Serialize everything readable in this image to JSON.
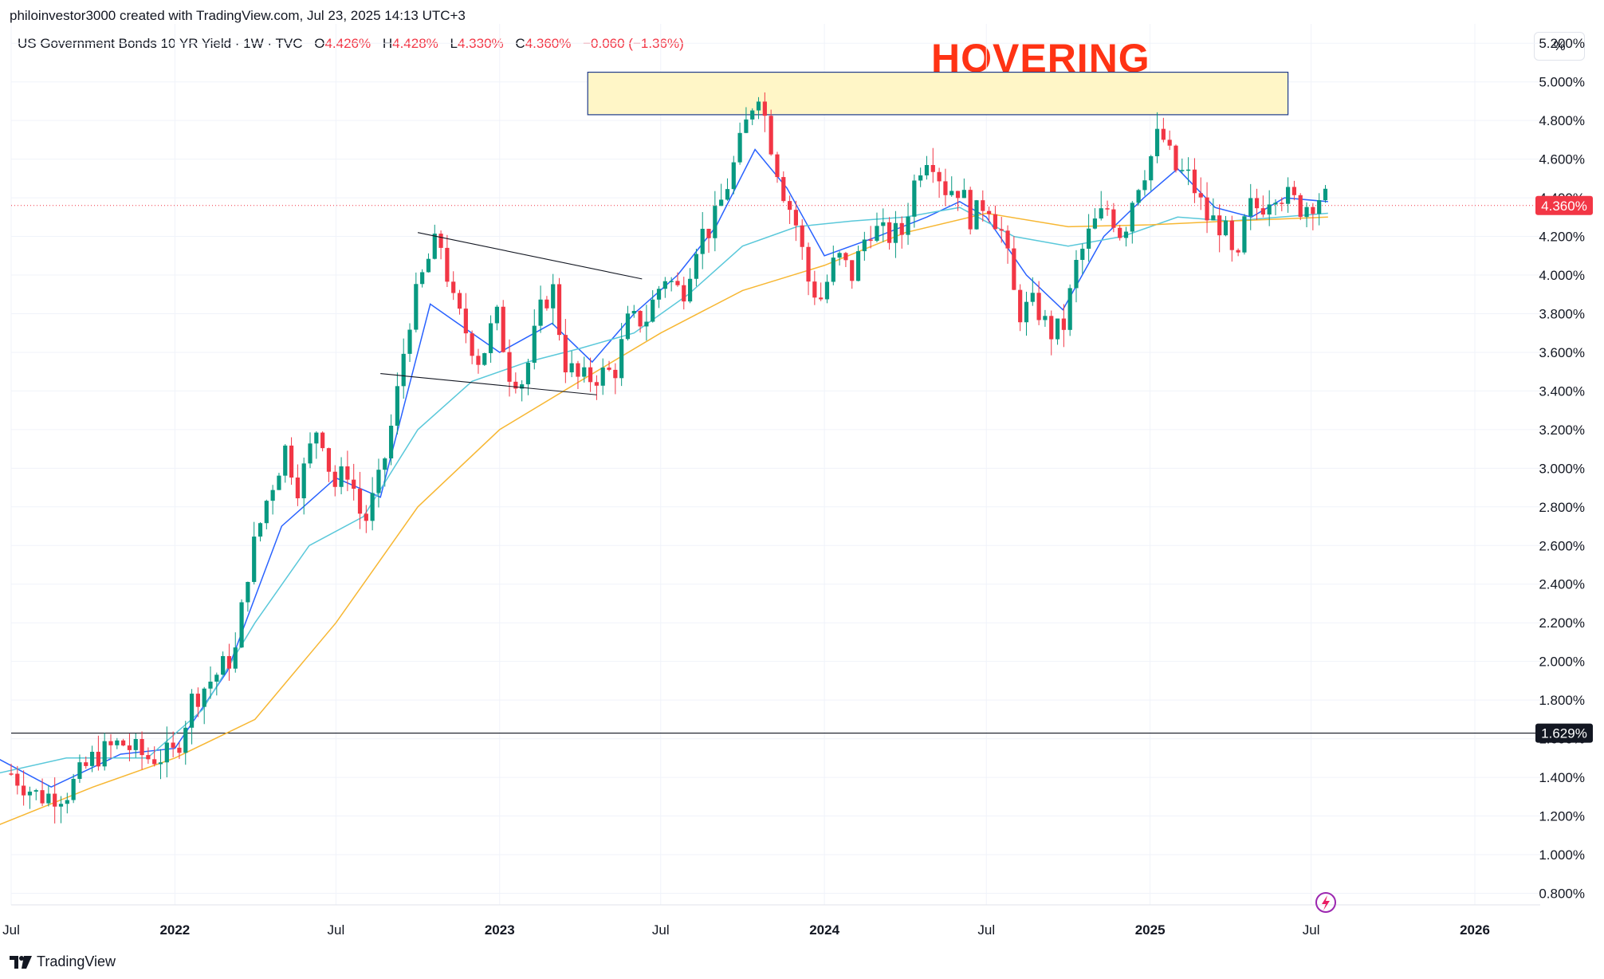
{
  "header": {
    "attribution": "philoinvestor3000 created with TradingView.com, Jul 23, 2025 14:13 UTC+3"
  },
  "legend": {
    "symbol": "US Government Bonds 10 YR Yield · 1W · TVC",
    "open_label": "O",
    "open": "4.426%",
    "high_label": "H",
    "high": "4.428%",
    "low_label": "L",
    "low": "4.330%",
    "close_label": "C",
    "close": "4.360%",
    "change": "−0.060 (−1.36%)"
  },
  "annotation": {
    "text": "HOVERING"
  },
  "price_axis": {
    "unit": "%"
  },
  "footer": {
    "brand": "TradingView"
  },
  "colors": {
    "up": "#089981",
    "down": "#f23645",
    "ma_fast": "#2962ff",
    "ma_mid": "#5ac8da",
    "ma_slow": "#f7b733",
    "zone_fill": "#fff6c7",
    "zone_border": "#1e3a8a"
  },
  "chart_data": {
    "type": "candlestick",
    "title": "US Government Bonds 10 YR Yield · 1W · TVC",
    "y_unit": "%",
    "ylim": [
      0.74,
      5.3
    ],
    "y_ticks": [
      "5.200%",
      "5.000%",
      "4.800%",
      "4.600%",
      "4.400%",
      "4.200%",
      "4.000%",
      "3.800%",
      "3.600%",
      "3.400%",
      "3.200%",
      "3.000%",
      "2.800%",
      "2.600%",
      "2.400%",
      "2.200%",
      "2.000%",
      "1.800%",
      "1.600%",
      "1.400%",
      "1.200%",
      "1.000%",
      "0.800%"
    ],
    "y_tick_values": [
      5.2,
      5.0,
      4.8,
      4.6,
      4.4,
      4.2,
      4.0,
      3.8,
      3.6,
      3.4,
      3.2,
      3.0,
      2.8,
      2.6,
      2.4,
      2.2,
      2.0,
      1.8,
      1.6,
      1.4,
      1.2,
      1.0,
      0.8
    ],
    "x_ticks": [
      {
        "label": "Jul",
        "date": "2021-07-01",
        "bold": false
      },
      {
        "label": "2022",
        "date": "2022-01-01",
        "bold": true
      },
      {
        "label": "Jul",
        "date": "2022-07-01",
        "bold": false
      },
      {
        "label": "2023",
        "date": "2023-01-01",
        "bold": true
      },
      {
        "label": "Jul",
        "date": "2023-07-01",
        "bold": false
      },
      {
        "label": "2024",
        "date": "2024-01-01",
        "bold": true
      },
      {
        "label": "Jul",
        "date": "2024-07-01",
        "bold": false
      },
      {
        "label": "2025",
        "date": "2025-01-01",
        "bold": true
      },
      {
        "label": "Jul",
        "date": "2025-07-01",
        "bold": false
      },
      {
        "label": "2026",
        "date": "2026-01-01",
        "bold": true
      }
    ],
    "last_price_label": "4.360%",
    "last_price": 4.36,
    "horizontal_line": {
      "value": 1.629,
      "label": "1.629%"
    },
    "resistance_zone": {
      "from_date": "2023-04-10",
      "to_date": "2025-06-05",
      "low": 4.83,
      "high": 5.05
    },
    "trendlines": [
      {
        "from": [
          "2022-10-01",
          4.22
        ],
        "to": [
          "2023-06-10",
          3.98
        ]
      },
      {
        "from": [
          "2022-08-20",
          3.49
        ],
        "to": [
          "2023-04-20",
          3.38
        ]
      }
    ],
    "close_path": [
      [
        "2021-07-01",
        1.42
      ],
      [
        "2021-08-01",
        1.3
      ],
      [
        "2021-09-01",
        1.32
      ],
      [
        "2021-10-01",
        1.5
      ],
      [
        "2021-11-01",
        1.58
      ],
      [
        "2021-12-01",
        1.5
      ],
      [
        "2022-01-01",
        1.52
      ],
      [
        "2022-01-20",
        1.8
      ],
      [
        "2022-02-20",
        1.95
      ],
      [
        "2022-03-10",
        2.05
      ],
      [
        "2022-03-25",
        2.5
      ],
      [
        "2022-04-15",
        2.85
      ],
      [
        "2022-05-05",
        3.1
      ],
      [
        "2022-05-20",
        2.9
      ],
      [
        "2022-06-12",
        3.25
      ],
      [
        "2022-06-28",
        2.9
      ],
      [
        "2022-07-15",
        3.0
      ],
      [
        "2022-08-01",
        2.7
      ],
      [
        "2022-08-20",
        2.95
      ],
      [
        "2022-09-05",
        3.3
      ],
      [
        "2022-09-20",
        3.75
      ],
      [
        "2022-10-10",
        4.05
      ],
      [
        "2022-10-25",
        4.2
      ],
      [
        "2022-11-10",
        3.85
      ],
      [
        "2022-11-25",
        3.7
      ],
      [
        "2022-12-10",
        3.55
      ],
      [
        "2022-12-28",
        3.8
      ],
      [
        "2023-01-12",
        3.5
      ],
      [
        "2023-01-28",
        3.45
      ],
      [
        "2023-02-15",
        3.8
      ],
      [
        "2023-03-01",
        3.95
      ],
      [
        "2023-03-15",
        3.55
      ],
      [
        "2023-04-01",
        3.45
      ],
      [
        "2023-04-20",
        3.48
      ],
      [
        "2023-05-10",
        3.5
      ],
      [
        "2023-05-25",
        3.75
      ],
      [
        "2023-06-15",
        3.78
      ],
      [
        "2023-07-05",
        4.0
      ],
      [
        "2023-07-25",
        3.9
      ],
      [
        "2023-08-12",
        4.2
      ],
      [
        "2023-08-28",
        4.25
      ],
      [
        "2023-09-20",
        4.55
      ],
      [
        "2023-10-05",
        4.78
      ],
      [
        "2023-10-18",
        4.98
      ],
      [
        "2023-11-01",
        4.7
      ],
      [
        "2023-11-15",
        4.45
      ],
      [
        "2023-12-01",
        4.25
      ],
      [
        "2023-12-15",
        3.95
      ],
      [
        "2023-12-28",
        3.88
      ],
      [
        "2024-01-15",
        4.1
      ],
      [
        "2024-02-01",
        4.0
      ],
      [
        "2024-02-20",
        4.25
      ],
      [
        "2024-03-10",
        4.2
      ],
      [
        "2024-03-28",
        4.22
      ],
      [
        "2024-04-15",
        4.55
      ],
      [
        "2024-04-28",
        4.65
      ],
      [
        "2024-05-15",
        4.45
      ],
      [
        "2024-06-01",
        4.45
      ],
      [
        "2024-06-15",
        4.28
      ],
      [
        "2024-07-01",
        4.4
      ],
      [
        "2024-07-20",
        4.2
      ],
      [
        "2024-08-05",
        3.8
      ],
      [
        "2024-08-25",
        3.85
      ],
      [
        "2024-09-10",
        3.7
      ],
      [
        "2024-09-25",
        3.72
      ],
      [
        "2024-10-10",
        4.05
      ],
      [
        "2024-10-28",
        4.25
      ],
      [
        "2024-11-15",
        4.35
      ],
      [
        "2024-12-01",
        4.2
      ],
      [
        "2024-12-15",
        4.45
      ],
      [
        "2025-01-01",
        4.6
      ],
      [
        "2025-01-12",
        4.75
      ],
      [
        "2025-01-28",
        4.55
      ],
      [
        "2025-02-15",
        4.5
      ],
      [
        "2025-03-05",
        4.3
      ],
      [
        "2025-03-25",
        4.25
      ],
      [
        "2025-04-08",
        4.0
      ],
      [
        "2025-04-20",
        4.35
      ],
      [
        "2025-05-05",
        4.35
      ],
      [
        "2025-05-20",
        4.45
      ],
      [
        "2025-06-05",
        4.4
      ],
      [
        "2025-06-20",
        4.35
      ],
      [
        "2025-07-01",
        4.38
      ],
      [
        "2025-07-14",
        4.42
      ],
      [
        "2025-07-21",
        4.36
      ]
    ],
    "moving_averages": [
      {
        "color": "#2962ff",
        "points": [
          [
            "2021-06-15",
            1.5
          ],
          [
            "2021-08-15",
            1.35
          ],
          [
            "2021-11-01",
            1.52
          ],
          [
            "2022-01-01",
            1.55
          ],
          [
            "2022-03-01",
            1.95
          ],
          [
            "2022-05-01",
            2.7
          ],
          [
            "2022-07-01",
            2.95
          ],
          [
            "2022-08-20",
            2.85
          ],
          [
            "2022-10-15",
            3.85
          ],
          [
            "2022-11-15",
            3.75
          ],
          [
            "2023-01-01",
            3.6
          ],
          [
            "2023-03-01",
            3.75
          ],
          [
            "2023-04-15",
            3.55
          ],
          [
            "2023-06-01",
            3.8
          ],
          [
            "2023-07-20",
            4.0
          ],
          [
            "2023-09-01",
            4.25
          ],
          [
            "2023-10-15",
            4.65
          ],
          [
            "2023-11-20",
            4.45
          ],
          [
            "2024-01-01",
            4.1
          ],
          [
            "2024-03-01",
            4.2
          ],
          [
            "2024-04-25",
            4.3
          ],
          [
            "2024-06-01",
            4.38
          ],
          [
            "2024-07-01",
            4.3
          ],
          [
            "2024-08-15",
            4.0
          ],
          [
            "2024-09-25",
            3.82
          ],
          [
            "2024-11-10",
            4.2
          ],
          [
            "2024-12-25",
            4.4
          ],
          [
            "2025-02-01",
            4.55
          ],
          [
            "2025-03-15",
            4.35
          ],
          [
            "2025-04-25",
            4.3
          ],
          [
            "2025-06-01",
            4.4
          ],
          [
            "2025-07-20",
            4.38
          ]
        ]
      },
      {
        "color": "#5ac8da",
        "points": [
          [
            "2021-06-15",
            1.42
          ],
          [
            "2021-09-01",
            1.5
          ],
          [
            "2021-12-01",
            1.5
          ],
          [
            "2022-02-01",
            1.75
          ],
          [
            "2022-04-01",
            2.2
          ],
          [
            "2022-06-01",
            2.6
          ],
          [
            "2022-08-01",
            2.75
          ],
          [
            "2022-10-01",
            3.2
          ],
          [
            "2022-12-01",
            3.45
          ],
          [
            "2023-02-01",
            3.55
          ],
          [
            "2023-04-01",
            3.62
          ],
          [
            "2023-06-01",
            3.7
          ],
          [
            "2023-08-01",
            3.9
          ],
          [
            "2023-10-01",
            4.15
          ],
          [
            "2023-12-01",
            4.25
          ],
          [
            "2024-02-01",
            4.28
          ],
          [
            "2024-04-01",
            4.3
          ],
          [
            "2024-06-01",
            4.35
          ],
          [
            "2024-08-01",
            4.2
          ],
          [
            "2024-10-01",
            4.15
          ],
          [
            "2024-12-01",
            4.2
          ],
          [
            "2025-02-01",
            4.3
          ],
          [
            "2025-04-01",
            4.28
          ],
          [
            "2025-07-20",
            4.32
          ]
        ]
      },
      {
        "color": "#f7b733",
        "points": [
          [
            "2021-06-15",
            1.15
          ],
          [
            "2021-10-01",
            1.35
          ],
          [
            "2022-01-01",
            1.5
          ],
          [
            "2022-04-01",
            1.7
          ],
          [
            "2022-07-01",
            2.2
          ],
          [
            "2022-10-01",
            2.8
          ],
          [
            "2023-01-01",
            3.2
          ],
          [
            "2023-04-01",
            3.45
          ],
          [
            "2023-07-01",
            3.7
          ],
          [
            "2023-10-01",
            3.92
          ],
          [
            "2024-01-01",
            4.05
          ],
          [
            "2024-04-01",
            4.22
          ],
          [
            "2024-07-01",
            4.32
          ],
          [
            "2024-10-01",
            4.25
          ],
          [
            "2025-01-01",
            4.26
          ],
          [
            "2025-04-01",
            4.28
          ],
          [
            "2025-07-20",
            4.3
          ]
        ]
      }
    ]
  }
}
